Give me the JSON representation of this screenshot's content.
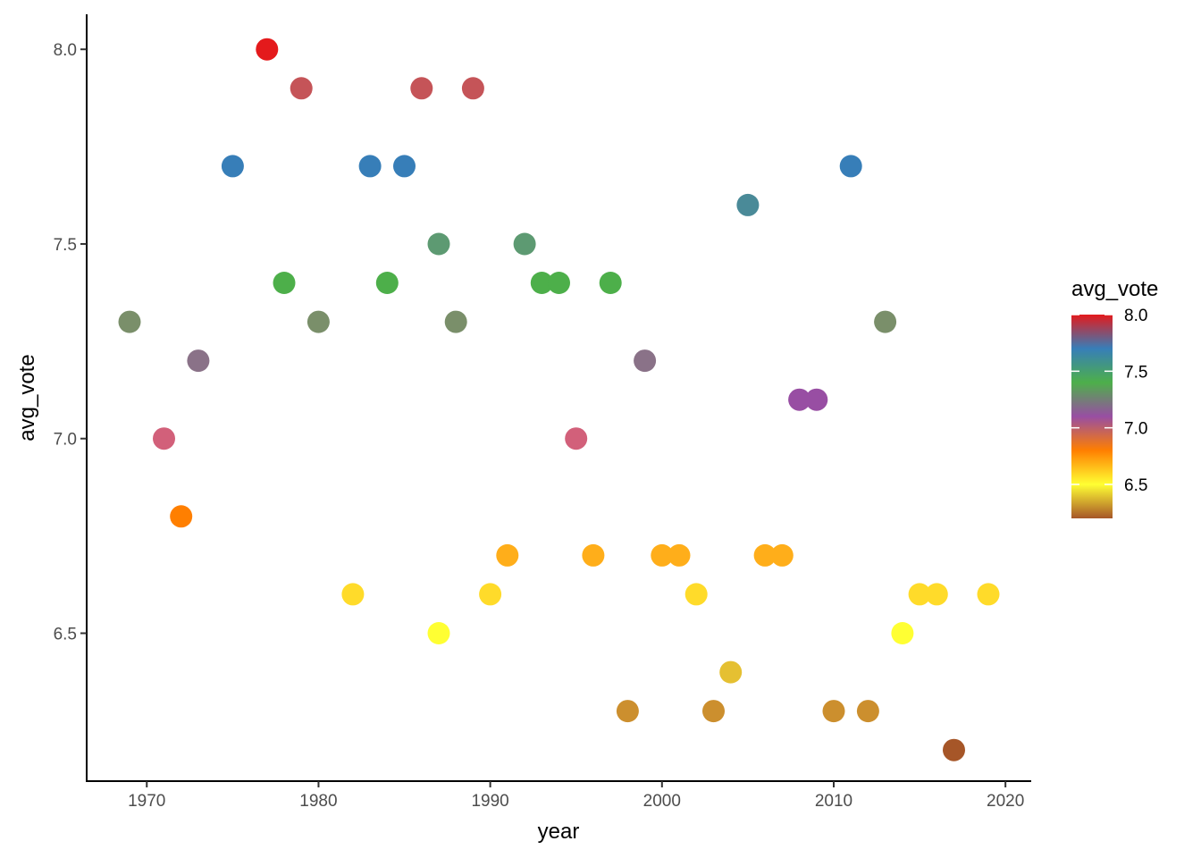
{
  "chart_data": {
    "type": "scatter",
    "xlabel": "year",
    "ylabel": "avg_vote",
    "xlim": [
      1966.5,
      2021.5
    ],
    "ylim": [
      6.12,
      8.09
    ],
    "xticks": [
      1970,
      1980,
      1990,
      2000,
      2010,
      2020
    ],
    "xtick_labels": [
      "1970",
      "1980",
      "1990",
      "2000",
      "2010",
      "2020"
    ],
    "yticks": [
      6.5,
      7.0,
      7.5,
      8.0
    ],
    "ytick_labels": [
      "6.5",
      "7.0",
      "7.5",
      "8.0"
    ],
    "grid": false,
    "legend": {
      "title": "avg_vote",
      "placement": "right",
      "type": "colorbar",
      "range": [
        6.2,
        8.0
      ],
      "ticks": [
        6.5,
        7.0,
        7.5,
        8.0
      ],
      "tick_labels": [
        "6.5",
        "7.0",
        "7.5",
        "8.0"
      ]
    },
    "colormap": {
      "name": "Set1-style gradient",
      "stops": [
        {
          "value": 6.2,
          "color": "#A65628"
        },
        {
          "value": 6.5,
          "color": "#FFFF33"
        },
        {
          "value": 6.8,
          "color": "#FF7F00"
        },
        {
          "value": 7.1,
          "color": "#984EA3"
        },
        {
          "value": 7.4,
          "color": "#4DAF4A"
        },
        {
          "value": 7.7,
          "color": "#377EB8"
        },
        {
          "value": 8.0,
          "color": "#E41A1C"
        }
      ]
    },
    "points": [
      {
        "x": 1969,
        "y": 7.3,
        "color": "#7A8F6A"
      },
      {
        "x": 1971,
        "y": 7.0,
        "color": "#D2607A"
      },
      {
        "x": 1972,
        "y": 6.8,
        "color": "#FF7F00"
      },
      {
        "x": 1973,
        "y": 7.2,
        "color": "#8A7288"
      },
      {
        "x": 1975,
        "y": 7.7,
        "color": "#377EB8"
      },
      {
        "x": 1977,
        "y": 8.0,
        "color": "#E41A1C"
      },
      {
        "x": 1978,
        "y": 7.4,
        "color": "#4DAF4A"
      },
      {
        "x": 1979,
        "y": 7.9,
        "color": "#C55458"
      },
      {
        "x": 1980,
        "y": 7.3,
        "color": "#7A8F6A"
      },
      {
        "x": 1982,
        "y": 6.6,
        "color": "#FFDB2A"
      },
      {
        "x": 1983,
        "y": 7.7,
        "color": "#377EB8"
      },
      {
        "x": 1984,
        "y": 7.4,
        "color": "#4DAF4A"
      },
      {
        "x": 1985,
        "y": 7.7,
        "color": "#377EB8"
      },
      {
        "x": 1986,
        "y": 7.9,
        "color": "#C55458"
      },
      {
        "x": 1987,
        "y": 7.5,
        "color": "#5D9A72"
      },
      {
        "x": 1987,
        "y": 6.5,
        "color": "#FFFF33"
      },
      {
        "x": 1988,
        "y": 7.3,
        "color": "#7A8F6A"
      },
      {
        "x": 1989,
        "y": 7.9,
        "color": "#C55458"
      },
      {
        "x": 1990,
        "y": 6.6,
        "color": "#FFDB2A"
      },
      {
        "x": 1991,
        "y": 6.7,
        "color": "#FFAE1A"
      },
      {
        "x": 1992,
        "y": 7.5,
        "color": "#5D9A72"
      },
      {
        "x": 1993,
        "y": 7.4,
        "color": "#4DAF4A"
      },
      {
        "x": 1994,
        "y": 7.4,
        "color": "#4DAF4A"
      },
      {
        "x": 1995,
        "y": 7.0,
        "color": "#D2607A"
      },
      {
        "x": 1996,
        "y": 6.7,
        "color": "#FFAE1A"
      },
      {
        "x": 1997,
        "y": 7.4,
        "color": "#4DAF4A"
      },
      {
        "x": 1998,
        "y": 6.3,
        "color": "#CC8F2E"
      },
      {
        "x": 1999,
        "y": 7.2,
        "color": "#8A7288"
      },
      {
        "x": 2000,
        "y": 6.7,
        "color": "#FFAE1A"
      },
      {
        "x": 2001,
        "y": 6.7,
        "color": "#FFAE1A"
      },
      {
        "x": 2002,
        "y": 6.6,
        "color": "#FFDB2A"
      },
      {
        "x": 2003,
        "y": 6.3,
        "color": "#CC8F2E"
      },
      {
        "x": 2004,
        "y": 6.4,
        "color": "#E5C032"
      },
      {
        "x": 2005,
        "y": 7.6,
        "color": "#4A8A98"
      },
      {
        "x": 2006,
        "y": 6.7,
        "color": "#FFAE1A"
      },
      {
        "x": 2007,
        "y": 6.7,
        "color": "#FFAE1A"
      },
      {
        "x": 2008,
        "y": 7.1,
        "color": "#984EA3"
      },
      {
        "x": 2009,
        "y": 7.1,
        "color": "#984EA3"
      },
      {
        "x": 2010,
        "y": 6.3,
        "color": "#CC8F2E"
      },
      {
        "x": 2011,
        "y": 7.7,
        "color": "#377EB8"
      },
      {
        "x": 2012,
        "y": 6.3,
        "color": "#CC8F2E"
      },
      {
        "x": 2013,
        "y": 7.3,
        "color": "#7A8F6A"
      },
      {
        "x": 2014,
        "y": 6.5,
        "color": "#FFFF33"
      },
      {
        "x": 2015,
        "y": 6.6,
        "color": "#FFDB2A"
      },
      {
        "x": 2016,
        "y": 6.6,
        "color": "#FFDB2A"
      },
      {
        "x": 2017,
        "y": 6.2,
        "color": "#A65628"
      },
      {
        "x": 2019,
        "y": 6.6,
        "color": "#FFDB2A"
      }
    ]
  }
}
